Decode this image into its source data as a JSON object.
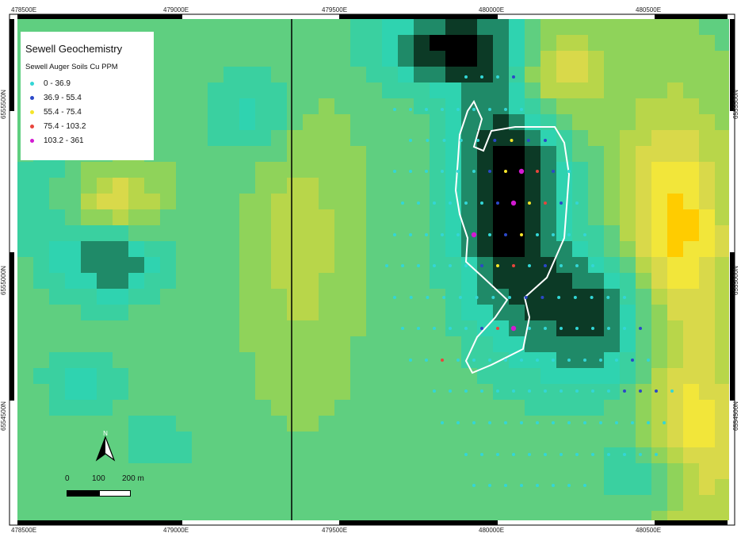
{
  "map": {
    "colors": {
      "ramp": [
        "#000000",
        "#0c3a26",
        "#1f8a68",
        "#2fd3b0",
        "#3ad0a0",
        "#5fcf80",
        "#8fd35a",
        "#b8d64a",
        "#d9d94a",
        "#f2e63a",
        "#ffcc00",
        "#f08a10",
        "#d9531a"
      ],
      "outline": "#ffffff",
      "divider": "#000000"
    },
    "grid_labels": {
      "top": [
        "478500E",
        "479000E",
        "479500E",
        "480000E",
        "480500E"
      ],
      "bottom": [
        "478500E",
        "479000E",
        "479500E",
        "480000E",
        "480500E"
      ],
      "left": [
        "6555500N",
        "6555000N",
        "6554500N"
      ],
      "right": [
        "6555500N",
        "6555000N",
        "6554500N"
      ]
    }
  },
  "legend": {
    "title": "Sewell Geochemistry",
    "subtitle": "Sewell Auger Soils Cu PPM",
    "classes": [
      {
        "label": "0 - 36.9",
        "color": "#33d6d6"
      },
      {
        "label": "36.9 - 55.4",
        "color": "#2b48c8"
      },
      {
        "label": "55.4 - 75.4",
        "color": "#f5e52a"
      },
      {
        "label": "75.4 - 103.2",
        "color": "#e8453c"
      },
      {
        "label": "103.2 - 361",
        "color": "#d21ad2"
      }
    ]
  },
  "scale_bar": {
    "labels": [
      "0",
      "100",
      "200 m"
    ]
  },
  "north_arrow": {
    "label": "N"
  }
}
